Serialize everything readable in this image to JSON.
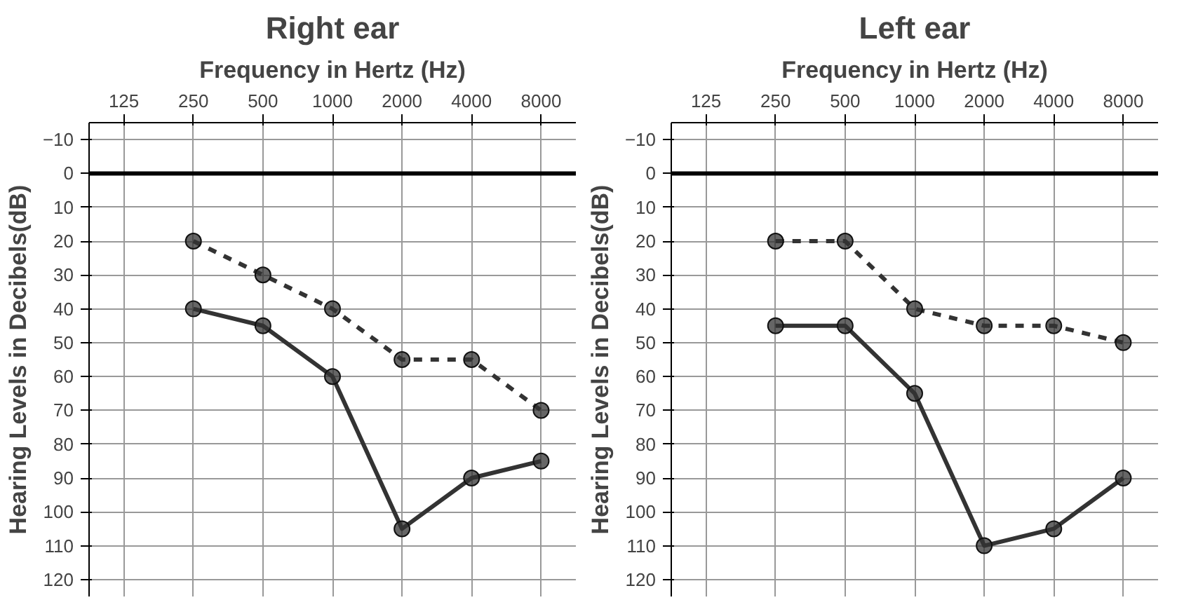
{
  "chart_data": [
    {
      "type": "line",
      "title": "Right ear",
      "xlabel": "Frequency in Hertz (Hz)",
      "ylabel": "Hearing Levels in Decibels(dB)",
      "categories": [
        "125",
        "250",
        "500",
        "1000",
        "2000",
        "4000",
        "8000"
      ],
      "series": [
        {
          "color": "#333333",
          "line_style": "dashed",
          "values": [
            null,
            20,
            30,
            40,
            55,
            55,
            70
          ]
        },
        {
          "color": "#333333",
          "line_style": "solid",
          "values": [
            null,
            40,
            45,
            60,
            105,
            90,
            85
          ]
        }
      ],
      "ylim": [
        125,
        -15
      ],
      "yticks": [
        -10,
        0,
        10,
        20,
        30,
        40,
        50,
        60,
        70,
        80,
        90,
        100,
        110,
        120
      ],
      "grid": true,
      "marker": "circle",
      "ref_lines": [
        {
          "axis": "y",
          "value": 0,
          "color": "#000000"
        }
      ]
    },
    {
      "type": "line",
      "title": "Left ear",
      "xlabel": "Frequency in Hertz (Hz)",
      "ylabel": "Hearing Levels in Decibels(dB)",
      "categories": [
        "125",
        "250",
        "500",
        "1000",
        "2000",
        "4000",
        "8000"
      ],
      "series": [
        {
          "color": "#333333",
          "line_style": "dashed",
          "values": [
            null,
            20,
            20,
            40,
            45,
            45,
            50
          ]
        },
        {
          "color": "#333333",
          "line_style": "solid",
          "values": [
            null,
            45,
            45,
            65,
            110,
            105,
            90
          ]
        }
      ],
      "ylim": [
        125,
        -15
      ],
      "yticks": [
        -10,
        0,
        10,
        20,
        30,
        40,
        50,
        60,
        70,
        80,
        90,
        100,
        110,
        120
      ],
      "grid": true,
      "marker": "circle",
      "ref_lines": [
        {
          "axis": "y",
          "value": 0,
          "color": "#000000"
        }
      ]
    }
  ]
}
